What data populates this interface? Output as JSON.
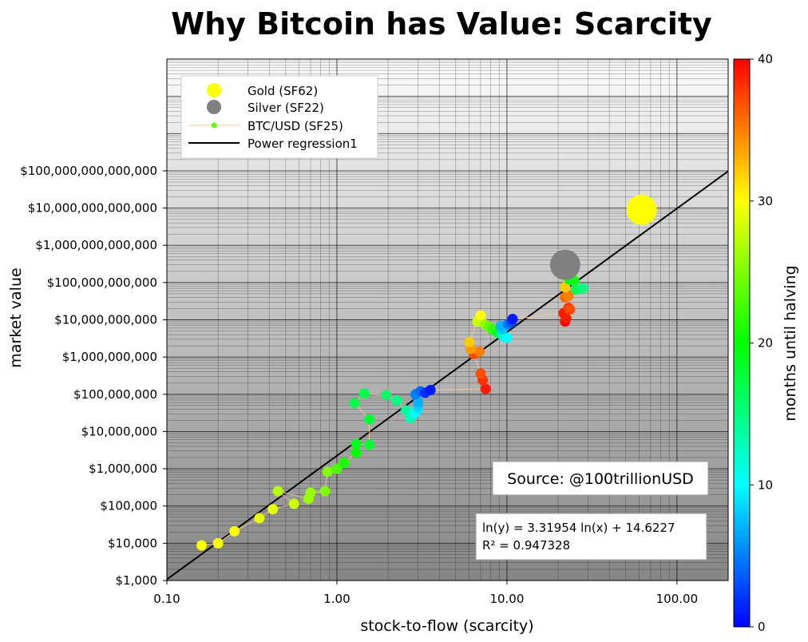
{
  "chart_data": {
    "type": "scatter",
    "title": "Why Bitcoin has Value: Scarcity",
    "xlabel": "stock-to-flow (scarcity)",
    "ylabel": "market value",
    "x_scale": "log",
    "y_scale": "log",
    "xlim": [
      0.1,
      200
    ],
    "ylim": [
      1000,
      1e+17
    ],
    "x_ticks": [
      {
        "value": 0.1,
        "label": "0.10"
      },
      {
        "value": 1,
        "label": "1.00"
      },
      {
        "value": 10,
        "label": "10.00"
      },
      {
        "value": 100,
        "label": "100.00"
      }
    ],
    "y_ticks": [
      {
        "value": 1000.0,
        "label": "$1,000"
      },
      {
        "value": 10000.0,
        "label": "$10,000"
      },
      {
        "value": 100000.0,
        "label": "$100,000"
      },
      {
        "value": 1000000.0,
        "label": "$1,000,000"
      },
      {
        "value": 10000000.0,
        "label": "$10,000,000"
      },
      {
        "value": 100000000.0,
        "label": "$100,000,000"
      },
      {
        "value": 1000000000.0,
        "label": "$1,000,000,000"
      },
      {
        "value": 10000000000.0,
        "label": "$10,000,000,000"
      },
      {
        "value": 100000000000.0,
        "label": "$100,000,000,000"
      },
      {
        "value": 1000000000000.0,
        "label": "$1,000,000,000,000"
      },
      {
        "value": 10000000000000.0,
        "label": "$10,000,000,000,000"
      },
      {
        "value": 100000000000000.0,
        "label": "$100,000,000,000,000"
      }
    ],
    "grid": true,
    "legend_position": "top-left",
    "legend": [
      {
        "label": "Gold (SF62)",
        "marker": "circle-large",
        "color": "#ffff00"
      },
      {
        "label": "Silver (SF22)",
        "marker": "circle-large",
        "color": "#808080"
      },
      {
        "label": "BTC/USD (SF25)",
        "marker": "line-dot",
        "color": "#66ff00",
        "line_color": "#f5c8a0"
      },
      {
        "label": "Power regression1",
        "marker": "line",
        "color": "#000000"
      }
    ],
    "colorbar": {
      "label": "months until halving",
      "min": 0,
      "max": 40,
      "ticks": [
        0,
        10,
        20,
        30,
        40
      ],
      "colors": [
        "#0000ff",
        "#00ffff",
        "#00ff00",
        "#ffff00",
        "#ff0000"
      ]
    },
    "regression": {
      "slope": 3.31954,
      "intercept": 14.6227,
      "label_line1": "ln(y) = 3.31954 ln(x) + 14.6227",
      "label_line2": "R² = 0.947328"
    },
    "source_label": "Source: @100trillionUSD",
    "gold": {
      "sf": 62,
      "value": 9000000000000.0,
      "color": "#ffff00"
    },
    "silver": {
      "sf": 22,
      "value": 300000000000.0,
      "color": "#808080"
    },
    "btc_points": [
      {
        "x": 0.16,
        "y": 8800,
        "m": 30
      },
      {
        "x": 0.2,
        "y": 10000,
        "m": 30
      },
      {
        "x": 0.25,
        "y": 21000,
        "m": 30
      },
      {
        "x": 0.35,
        "y": 47000,
        "m": 29
      },
      {
        "x": 0.42,
        "y": 82000,
        "m": 29
      },
      {
        "x": 0.56,
        "y": 115000,
        "m": 28
      },
      {
        "x": 0.45,
        "y": 250000,
        "m": 27
      },
      {
        "x": 0.68,
        "y": 155000,
        "m": 26
      },
      {
        "x": 0.7,
        "y": 230000,
        "m": 26
      },
      {
        "x": 0.85,
        "y": 250000,
        "m": 25
      },
      {
        "x": 0.88,
        "y": 830000,
        "m": 25
      },
      {
        "x": 1.0,
        "y": 1000000,
        "m": 23
      },
      {
        "x": 1.1,
        "y": 1450000,
        "m": 21
      },
      {
        "x": 1.3,
        "y": 2700000,
        "m": 20
      },
      {
        "x": 1.3,
        "y": 4700000,
        "m": 19
      },
      {
        "x": 1.55,
        "y": 4400000,
        "m": 18
      },
      {
        "x": 1.55,
        "y": 21000000,
        "m": 18
      },
      {
        "x": 1.27,
        "y": 58000000,
        "m": 17
      },
      {
        "x": 1.45,
        "y": 105000000,
        "m": 17
      },
      {
        "x": 1.95,
        "y": 95000000,
        "m": 16
      },
      {
        "x": 2.25,
        "y": 68000000,
        "m": 15
      },
      {
        "x": 2.55,
        "y": 37000000,
        "m": 14
      },
      {
        "x": 2.7,
        "y": 23000000,
        "m": 13
      },
      {
        "x": 2.8,
        "y": 29000000,
        "m": 12
      },
      {
        "x": 2.9,
        "y": 33000000,
        "m": 10
      },
      {
        "x": 3.0,
        "y": 40000000,
        "m": 9
      },
      {
        "x": 3.0,
        "y": 50000000,
        "m": 8
      },
      {
        "x": 3.0,
        "y": 62000000,
        "m": 7
      },
      {
        "x": 2.9,
        "y": 100000000,
        "m": 5
      },
      {
        "x": 3.1,
        "y": 120000000,
        "m": 4
      },
      {
        "x": 3.3,
        "y": 110000000,
        "m": 2
      },
      {
        "x": 3.55,
        "y": 130000000,
        "m": 1
      },
      {
        "x": 7.5,
        "y": 140000000,
        "m": 39
      },
      {
        "x": 7.2,
        "y": 240000000,
        "m": 38
      },
      {
        "x": 7.0,
        "y": 360000000,
        "m": 37
      },
      {
        "x": 6.4,
        "y": 1200000000,
        "m": 37
      },
      {
        "x": 6.9,
        "y": 1400000000,
        "m": 35
      },
      {
        "x": 6.1,
        "y": 1650000000,
        "m": 34
      },
      {
        "x": 6.0,
        "y": 2500000000,
        "m": 32
      },
      {
        "x": 6.7,
        "y": 9000000000,
        "m": 28
      },
      {
        "x": 7.0,
        "y": 13000000000,
        "m": 30
      },
      {
        "x": 7.4,
        "y": 7500000000,
        "m": 26
      },
      {
        "x": 7.8,
        "y": 6500000000,
        "m": 24
      },
      {
        "x": 8.2,
        "y": 5500000000,
        "m": 22
      },
      {
        "x": 8.8,
        "y": 4500000000,
        "m": 18
      },
      {
        "x": 9.3,
        "y": 4000000000,
        "m": 14
      },
      {
        "x": 9.6,
        "y": 3500000000,
        "m": 12
      },
      {
        "x": 10.0,
        "y": 3300000000,
        "m": 10
      },
      {
        "x": 9.4,
        "y": 5500000000,
        "m": 8
      },
      {
        "x": 9.2,
        "y": 6800000000,
        "m": 7
      },
      {
        "x": 10.1,
        "y": 7500000000,
        "m": 5
      },
      {
        "x": 10.6,
        "y": 8500000000,
        "m": 3
      },
      {
        "x": 10.8,
        "y": 10500000000,
        "m": 1
      },
      {
        "x": 21.5,
        "y": 15000000000,
        "m": 39
      },
      {
        "x": 22.0,
        "y": 9000000000,
        "m": 40
      },
      {
        "x": 22.3,
        "y": 11000000000,
        "m": 39
      },
      {
        "x": 23.0,
        "y": 21000000000,
        "m": 38
      },
      {
        "x": 23.5,
        "y": 19000000000,
        "m": 37
      },
      {
        "x": 22.0,
        "y": 40000000000,
        "m": 36
      },
      {
        "x": 23.0,
        "y": 44000000000,
        "m": 35
      },
      {
        "x": 22.0,
        "y": 75000000000,
        "m": 32
      },
      {
        "x": 21.3,
        "y": 160000000000,
        "m": 26
      },
      {
        "x": 21.4,
        "y": 230000000000,
        "m": 27
      },
      {
        "x": 24.3,
        "y": 170000000000,
        "m": 25
      },
      {
        "x": 23.3,
        "y": 120000000000,
        "m": 20
      },
      {
        "x": 24.8,
        "y": 110000000000,
        "m": 19
      },
      {
        "x": 25.5,
        "y": 65000000000,
        "m": 17
      },
      {
        "x": 28.0,
        "y": 70000000000,
        "m": 15
      }
    ]
  }
}
